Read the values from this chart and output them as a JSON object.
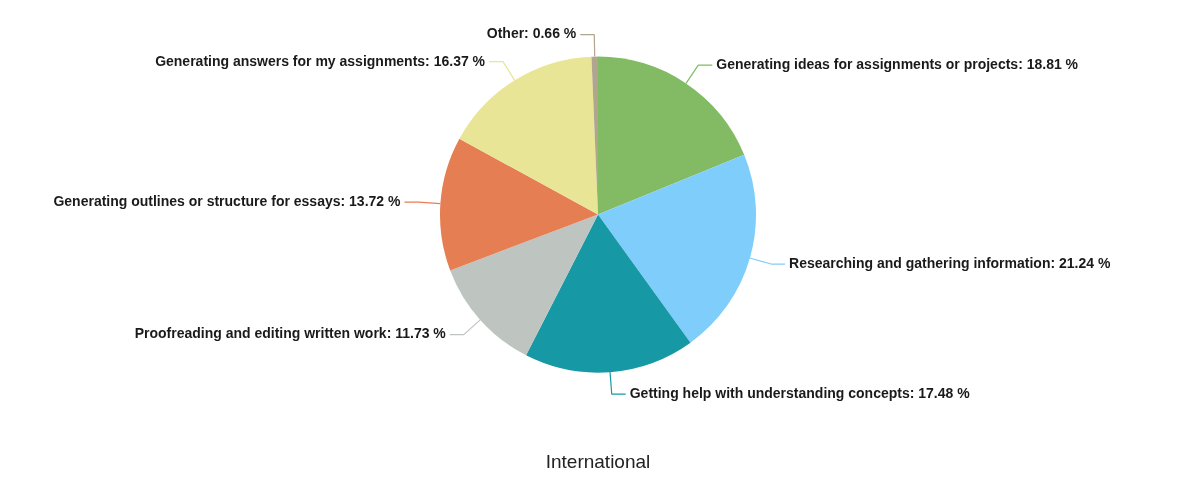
{
  "chart_data": {
    "type": "pie",
    "title": "International",
    "categories": [
      "Generating ideas for assignments or projects",
      "Researching and gathering information",
      "Getting help with understanding concepts",
      "Proofreading and editing written work",
      "Generating outlines or structure for essays",
      "Generating answers for my assignments",
      "Other"
    ],
    "values": [
      18.81,
      21.24,
      17.48,
      11.73,
      13.72,
      16.37,
      0.66
    ],
    "value_labels": [
      "18.81 %",
      "21.24 %",
      "17.48 %",
      "11.73 %",
      "13.72 %",
      "16.37 %",
      "0.66 %"
    ],
    "colors": [
      "#82bb64",
      "#7fcdfb",
      "#1798a5",
      "#bec4c0",
      "#e67e53",
      "#e8e596",
      "#b0a58d"
    ],
    "legend": false
  }
}
